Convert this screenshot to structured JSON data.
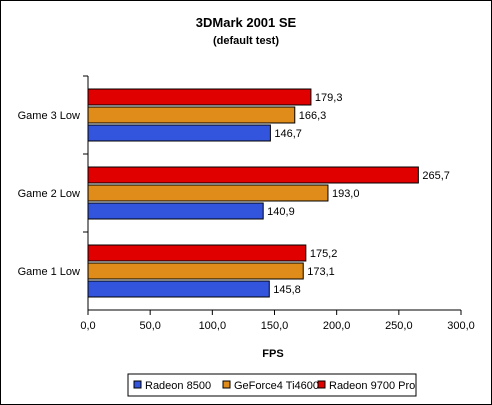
{
  "chart_data": {
    "type": "bar",
    "orientation": "horizontal",
    "title": "3DMark 2001 SE",
    "subtitle": "(default test)",
    "xlabel": "FPS",
    "ylabel": "",
    "xlim": [
      0,
      300
    ],
    "x_ticks": [
      "0,0",
      "50,0",
      "100,0",
      "150,0",
      "200,0",
      "250,0",
      "300,0"
    ],
    "grid": false,
    "legend_position": "bottom",
    "categories": [
      "Game 3 Low",
      "Game 2 Low",
      "Game 1 Low"
    ],
    "series": [
      {
        "name": "Radeon 9700 Pro",
        "color": "#e00000",
        "values": [
          179.3,
          265.7,
          175.2
        ],
        "labels": [
          "179,3",
          "265,7",
          "175,2"
        ]
      },
      {
        "name": "GeForce4 Ti4600",
        "color": "#e08c1a",
        "values": [
          166.3,
          193.0,
          173.1
        ],
        "labels": [
          "166,3",
          "193,0",
          "173,1"
        ]
      },
      {
        "name": "Radeon 8500",
        "color": "#3355dd",
        "values": [
          146.7,
          140.9,
          145.8
        ],
        "labels": [
          "146,7",
          "140,9",
          "145,8"
        ]
      }
    ],
    "legend_order": [
      "Radeon 8500",
      "GeForce4 Ti4600",
      "Radeon 9700 Pro"
    ]
  }
}
